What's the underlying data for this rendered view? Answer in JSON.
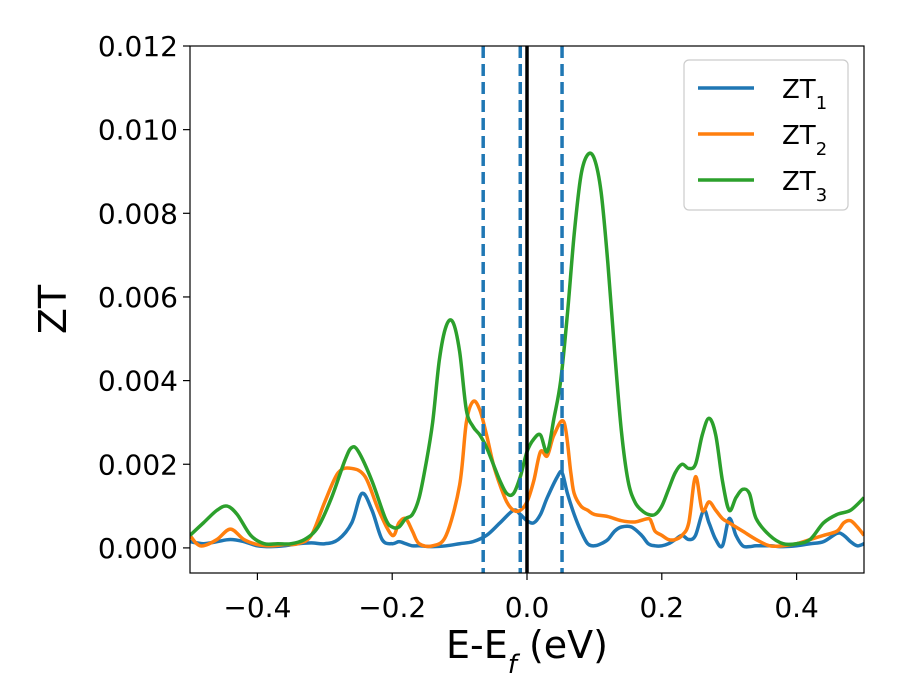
{
  "chart_data": {
    "type": "line",
    "xlabel": "E-E",
    "xlabel_sub": "f",
    "xlabel_unit": "(eV)",
    "ylabel": "ZT",
    "xlim": [
      -0.5,
      0.5
    ],
    "ylim": [
      -0.0006,
      0.012
    ],
    "x_ticks": [
      -0.4,
      -0.2,
      0.0,
      0.2,
      0.4
    ],
    "x_tick_labels": [
      "−0.4",
      "−0.2",
      "0.0",
      "0.2",
      "0.4"
    ],
    "y_ticks": [
      0.0,
      0.002,
      0.004,
      0.006,
      0.008,
      0.01,
      0.012
    ],
    "y_tick_labels": [
      "0.000",
      "0.002",
      "0.004",
      "0.006",
      "0.008",
      "0.010",
      "0.012"
    ],
    "grid": false,
    "legend_position": "top-right",
    "vertical_lines": [
      {
        "x": -0.065,
        "style": "dashed",
        "color": "#1f77b4"
      },
      {
        "x": -0.01,
        "style": "dashed",
        "color": "#1f77b4"
      },
      {
        "x": 0.052,
        "style": "dashed",
        "color": "#1f77b4"
      },
      {
        "x": 0.0,
        "style": "solid",
        "color": "#000000"
      }
    ],
    "series": [
      {
        "name": "ZT",
        "name_sub": "1",
        "color": "#1f77b4",
        "x": [
          -0.5,
          -0.48,
          -0.46,
          -0.44,
          -0.42,
          -0.4,
          -0.38,
          -0.36,
          -0.34,
          -0.32,
          -0.3,
          -0.28,
          -0.26,
          -0.245,
          -0.23,
          -0.215,
          -0.2,
          -0.19,
          -0.18,
          -0.17,
          -0.16,
          -0.14,
          -0.12,
          -0.1,
          -0.08,
          -0.06,
          -0.04,
          -0.02,
          -0.01,
          0.0,
          0.01,
          0.02,
          0.03,
          0.045,
          0.052,
          0.06,
          0.07,
          0.08,
          0.09,
          0.1,
          0.11,
          0.12,
          0.13,
          0.14,
          0.155,
          0.17,
          0.18,
          0.19,
          0.2,
          0.21,
          0.22,
          0.23,
          0.24,
          0.25,
          0.262,
          0.27,
          0.28,
          0.29,
          0.3,
          0.31,
          0.32,
          0.33,
          0.34,
          0.36,
          0.38,
          0.4,
          0.42,
          0.44,
          0.46,
          0.47,
          0.48,
          0.49,
          0.5
        ],
        "y": [
          0.00015,
          0.0001,
          0.00015,
          0.0002,
          0.00015,
          5e-05,
          3e-05,
          5e-05,
          0.0001,
          0.00012,
          0.0001,
          0.0002,
          0.0006,
          0.0013,
          0.0009,
          0.0002,
          0.0001,
          0.00015,
          0.0001,
          5e-05,
          5e-05,
          3e-05,
          5e-05,
          0.0001,
          0.00015,
          0.0003,
          0.0006,
          0.0009,
          0.0008,
          0.00065,
          0.0006,
          0.0008,
          0.0012,
          0.0017,
          0.0018,
          0.0013,
          0.0008,
          0.0004,
          0.0001,
          5e-05,
          0.0001,
          0.0002,
          0.0004,
          0.0005,
          0.0005,
          0.0003,
          0.0001,
          5e-05,
          5e-05,
          0.0001,
          0.0002,
          0.0003,
          0.0002,
          0.0003,
          0.0009,
          0.0006,
          0.0002,
          5e-05,
          0.0007,
          0.0003,
          5e-05,
          3e-05,
          5e-05,
          5e-05,
          3e-05,
          5e-05,
          0.0001,
          0.00015,
          0.00035,
          0.0003,
          0.00015,
          5e-05,
          0.0001
        ]
      },
      {
        "name": "ZT",
        "name_sub": "2",
        "color": "#ff7f0e",
        "x": [
          -0.5,
          -0.49,
          -0.48,
          -0.46,
          -0.44,
          -0.42,
          -0.4,
          -0.38,
          -0.36,
          -0.34,
          -0.32,
          -0.3,
          -0.28,
          -0.26,
          -0.24,
          -0.22,
          -0.2,
          -0.19,
          -0.18,
          -0.17,
          -0.16,
          -0.14,
          -0.12,
          -0.1,
          -0.09,
          -0.08,
          -0.07,
          -0.06,
          -0.05,
          -0.04,
          -0.03,
          -0.02,
          -0.01,
          0.0,
          0.01,
          0.02,
          0.03,
          0.04,
          0.055,
          0.065,
          0.07,
          0.08,
          0.09,
          0.1,
          0.12,
          0.14,
          0.16,
          0.18,
          0.185,
          0.19,
          0.2,
          0.21,
          0.22,
          0.23,
          0.24,
          0.25,
          0.26,
          0.27,
          0.28,
          0.29,
          0.3,
          0.32,
          0.34,
          0.36,
          0.38,
          0.4,
          0.42,
          0.44,
          0.46,
          0.47,
          0.48,
          0.49,
          0.5
        ],
        "y": [
          0.0003,
          0.0001,
          5e-05,
          0.0002,
          0.00045,
          0.0002,
          8e-05,
          5e-05,
          8e-05,
          0.0001,
          0.0003,
          0.0011,
          0.0018,
          0.0019,
          0.0017,
          0.0009,
          0.0003,
          0.0006,
          0.0007,
          0.0004,
          0.0001,
          5e-05,
          0.0003,
          0.0015,
          0.003,
          0.0035,
          0.0033,
          0.0027,
          0.002,
          0.0015,
          0.0011,
          0.0009,
          0.0009,
          0.0011,
          0.0016,
          0.0023,
          0.0022,
          0.0027,
          0.003,
          0.0018,
          0.0013,
          0.001,
          0.0009,
          0.0008,
          0.00075,
          0.00065,
          0.00062,
          0.0007,
          0.0006,
          0.0004,
          0.0003,
          0.0002,
          0.0002,
          0.0003,
          0.0006,
          0.0017,
          0.0009,
          0.0011,
          0.0009,
          0.0007,
          0.0006,
          0.0004,
          0.0002,
          5e-05,
          5e-05,
          0.0001,
          0.0002,
          0.0003,
          0.0004,
          0.0006,
          0.00065,
          0.0005,
          0.0003
        ]
      },
      {
        "name": "ZT",
        "name_sub": "3",
        "color": "#2ca02c",
        "x": [
          -0.5,
          -0.48,
          -0.46,
          -0.445,
          -0.43,
          -0.41,
          -0.39,
          -0.37,
          -0.35,
          -0.33,
          -0.31,
          -0.29,
          -0.27,
          -0.26,
          -0.25,
          -0.23,
          -0.21,
          -0.2,
          -0.19,
          -0.18,
          -0.17,
          -0.16,
          -0.15,
          -0.14,
          -0.13,
          -0.12,
          -0.11,
          -0.1,
          -0.09,
          -0.08,
          -0.07,
          -0.06,
          -0.05,
          -0.04,
          -0.03,
          -0.02,
          -0.01,
          0.0,
          0.01,
          0.02,
          0.03,
          0.04,
          0.05,
          0.06,
          0.07,
          0.08,
          0.09,
          0.1,
          0.11,
          0.12,
          0.13,
          0.14,
          0.15,
          0.16,
          0.17,
          0.18,
          0.19,
          0.2,
          0.21,
          0.22,
          0.23,
          0.24,
          0.25,
          0.26,
          0.27,
          0.28,
          0.29,
          0.3,
          0.31,
          0.32,
          0.33,
          0.34,
          0.36,
          0.38,
          0.4,
          0.42,
          0.44,
          0.46,
          0.48,
          0.5
        ],
        "y": [
          0.0003,
          0.0006,
          0.0009,
          0.001,
          0.0008,
          0.0003,
          0.0001,
          0.0001,
          0.0001,
          0.0002,
          0.0005,
          0.0012,
          0.0021,
          0.0024,
          0.0023,
          0.0016,
          0.0007,
          0.0005,
          0.0005,
          0.0007,
          0.0008,
          0.0012,
          0.002,
          0.003,
          0.0045,
          0.0053,
          0.0054,
          0.0047,
          0.0033,
          0.0029,
          0.0027,
          0.0024,
          0.002,
          0.0016,
          0.0013,
          0.0013,
          0.0017,
          0.0023,
          0.0026,
          0.0027,
          0.0023,
          0.0031,
          0.004,
          0.0056,
          0.0075,
          0.0089,
          0.0094,
          0.0093,
          0.0085,
          0.0068,
          0.0047,
          0.0028,
          0.0016,
          0.0011,
          0.0009,
          0.0008,
          0.0008,
          0.001,
          0.0014,
          0.0018,
          0.002,
          0.0019,
          0.002,
          0.0027,
          0.0031,
          0.0027,
          0.0016,
          0.0009,
          0.0012,
          0.0014,
          0.0013,
          0.0007,
          0.0003,
          0.0001,
          0.0001,
          0.0002,
          0.0006,
          0.0008,
          0.0009,
          0.0012
        ]
      }
    ]
  }
}
